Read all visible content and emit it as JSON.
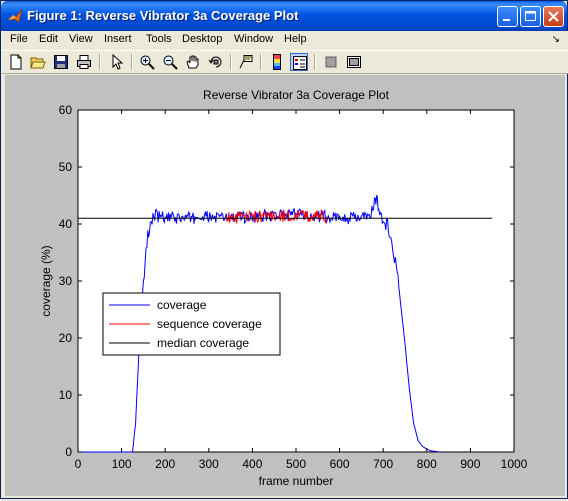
{
  "window": {
    "title": "Figure 1: Reverse Vibrator 3a Coverage Plot",
    "buttons": [
      "0",
      "1",
      "r"
    ]
  },
  "menu": {
    "items": [
      "File",
      "Edit",
      "View",
      "Insert",
      "Tools",
      "Desktop",
      "Window",
      "Help"
    ],
    "overflow": "↘"
  },
  "toolbar": {
    "tools": [
      "new-figure",
      "open-file",
      "save",
      "print",
      "edit-plot",
      "zoom-in",
      "zoom-out",
      "pan",
      "rotate-3d",
      "data-cursor",
      "insert-colorbar",
      "insert-legend",
      "hide-plot-tools",
      "show-plot-tools"
    ]
  },
  "chart_data": {
    "type": "line",
    "title": "Reverse Vibrator 3a Coverage Plot",
    "xlabel": "frame number",
    "ylabel": "coverage (%)",
    "xlim": [
      0,
      1000
    ],
    "ylim": [
      0,
      60
    ],
    "xticks": [
      "0",
      "100",
      "200",
      "300",
      "400",
      "500",
      "600",
      "700",
      "800",
      "900",
      "1000"
    ],
    "yticks": [
      "0",
      "10",
      "20",
      "30",
      "40",
      "50",
      "60"
    ],
    "grid": false,
    "legend_position": "middle-left",
    "series": [
      {
        "name": "coverage",
        "color": "#0000ff",
        "x": [
          0,
          125,
          132,
          140,
          150,
          160,
          170,
          180,
          200,
          250,
          300,
          350,
          400,
          450,
          500,
          550,
          600,
          650,
          670,
          680,
          685,
          690,
          700,
          710,
          720,
          730,
          740,
          750,
          760,
          770,
          780,
          790,
          800,
          810,
          830
        ],
        "y": [
          0,
          0,
          5,
          18,
          30,
          38,
          41,
          41.5,
          41,
          41,
          41.2,
          41,
          41.3,
          41.5,
          41.6,
          41.4,
          41,
          41,
          41.5,
          43.5,
          45,
          42.5,
          39.5,
          40,
          36,
          33,
          26,
          19,
          11,
          5,
          2,
          1,
          0.5,
          0.2,
          0
        ]
      },
      {
        "name": "sequence coverage",
        "color": "#ff0000",
        "x": [
          340,
          400,
          450,
          500,
          550,
          570
        ],
        "y": [
          41,
          41.2,
          41.3,
          41.5,
          41.4,
          41.3
        ]
      },
      {
        "name": "median coverage",
        "color": "#000000",
        "x": [
          0,
          950
        ],
        "y": [
          41,
          41
        ]
      }
    ]
  }
}
